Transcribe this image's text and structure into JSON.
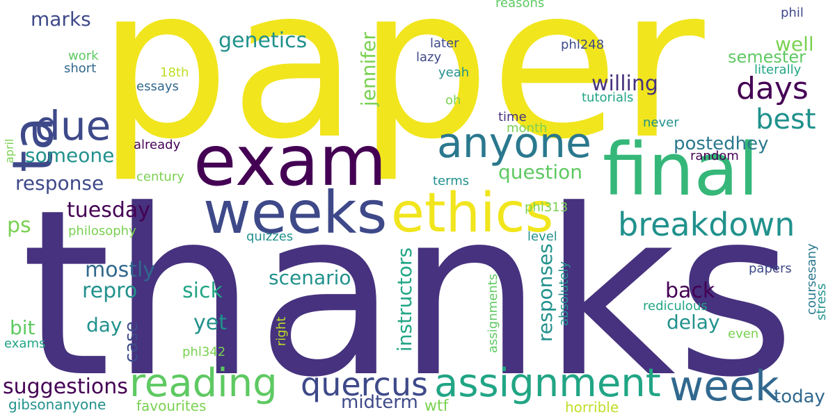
{
  "word_cloud": {
    "background": "#ffffff",
    "words": [
      {
        "text": "thanks",
        "color": "#46327e",
        "vertical": false
      },
      {
        "text": "paper",
        "color": "#f1e51d",
        "vertical": false
      },
      {
        "text": "exam",
        "color": "#440154",
        "vertical": false
      },
      {
        "text": "final",
        "color": "#35b779",
        "vertical": false
      },
      {
        "text": "weeks",
        "color": "#3e4989",
        "vertical": false
      },
      {
        "text": "ethics",
        "color": "#f1e51d",
        "vertical": false
      },
      {
        "text": "ta",
        "color": "#3e4989",
        "vertical": true
      },
      {
        "text": "due",
        "color": "#3e4989",
        "vertical": false
      },
      {
        "text": "anyone",
        "color": "#2a788e",
        "vertical": false
      },
      {
        "text": "reading",
        "color": "#5ec962",
        "vertical": false
      },
      {
        "text": "assignment",
        "color": "#21a585",
        "vertical": false
      },
      {
        "text": "week",
        "color": "#31688e",
        "vertical": false
      },
      {
        "text": "quercus",
        "color": "#3e4989",
        "vertical": false
      },
      {
        "text": "breakdown",
        "color": "#21918c",
        "vertical": false
      },
      {
        "text": "days",
        "color": "#440154",
        "vertical": false
      },
      {
        "text": "best",
        "color": "#21918c",
        "vertical": false
      },
      {
        "text": "genetics",
        "color": "#21918c",
        "vertical": false
      },
      {
        "text": "marks",
        "color": "#3e4989",
        "vertical": false
      },
      {
        "text": "willing",
        "color": "#46327e",
        "vertical": false
      },
      {
        "text": "well",
        "color": "#7ad151",
        "vertical": false
      },
      {
        "text": "semester",
        "color": "#5ec962",
        "vertical": false
      },
      {
        "text": "someone",
        "color": "#21918c",
        "vertical": false
      },
      {
        "text": "response",
        "color": "#3e4989",
        "vertical": false
      },
      {
        "text": "tuesday",
        "color": "#440154",
        "vertical": false
      },
      {
        "text": "mostly",
        "color": "#31688e",
        "vertical": false
      },
      {
        "text": "repro",
        "color": "#21918c",
        "vertical": false
      },
      {
        "text": "sick",
        "color": "#21a585",
        "vertical": false
      },
      {
        "text": "scenario",
        "color": "#21918c",
        "vertical": false
      },
      {
        "text": "question",
        "color": "#5ec962",
        "vertical": false
      },
      {
        "text": "postedhey",
        "color": "#2a788e",
        "vertical": false
      },
      {
        "text": "jennifer",
        "color": "#7ad151",
        "vertical": true
      },
      {
        "text": "instructors",
        "color": "#21a585",
        "vertical": true
      },
      {
        "text": "responses",
        "color": "#21918c",
        "vertical": true
      },
      {
        "text": "back",
        "color": "#440154",
        "vertical": false
      },
      {
        "text": "delay",
        "color": "#21918c",
        "vertical": false
      },
      {
        "text": "yet",
        "color": "#21918c",
        "vertical": false
      },
      {
        "text": "day",
        "color": "#21918c",
        "vertical": false
      },
      {
        "text": "case",
        "color": "#3e4989",
        "vertical": true
      },
      {
        "text": "bit",
        "color": "#5ec962",
        "vertical": false
      },
      {
        "text": "ps",
        "color": "#7ad151",
        "vertical": false
      },
      {
        "text": "suggestions",
        "color": "#440154",
        "vertical": false
      },
      {
        "text": "midterm",
        "color": "#3e4989",
        "vertical": false
      },
      {
        "text": "today",
        "color": "#31688e",
        "vertical": false
      },
      {
        "text": "wtf",
        "color": "#7ad151",
        "vertical": false
      },
      {
        "text": "gibsonanyone",
        "color": "#21918c",
        "vertical": false
      },
      {
        "text": "favourites",
        "color": "#7ad151",
        "vertical": false
      },
      {
        "text": "horrible",
        "color": "#bddf26",
        "vertical": false
      },
      {
        "text": "exams",
        "color": "#21a585",
        "vertical": false
      },
      {
        "text": "phl342",
        "color": "#7ad151",
        "vertical": false
      },
      {
        "text": "right",
        "color": "#bddf26",
        "vertical": true
      },
      {
        "text": "assignments",
        "color": "#5ec962",
        "vertical": true
      },
      {
        "text": "absolutely",
        "color": "#21918c",
        "vertical": true
      },
      {
        "text": "rediculous",
        "color": "#21a585",
        "vertical": false
      },
      {
        "text": "even",
        "color": "#7ad151",
        "vertical": false
      },
      {
        "text": "papers",
        "color": "#3e4989",
        "vertical": false
      },
      {
        "text": "coursesany",
        "color": "#2a788e",
        "vertical": true
      },
      {
        "text": "stress",
        "color": "#21918c",
        "vertical": true
      },
      {
        "text": "level",
        "color": "#21918c",
        "vertical": false
      },
      {
        "text": "quizzes",
        "color": "#21918c",
        "vertical": false
      },
      {
        "text": "philosophy",
        "color": "#7ad151",
        "vertical": false
      },
      {
        "text": "phl313",
        "color": "#7ad151",
        "vertical": false
      },
      {
        "text": "terms",
        "color": "#21918c",
        "vertical": false
      },
      {
        "text": "random",
        "color": "#440154",
        "vertical": false
      },
      {
        "text": "century",
        "color": "#7ad151",
        "vertical": false
      },
      {
        "text": "april",
        "color": "#7ad151",
        "vertical": true
      },
      {
        "text": "already",
        "color": "#440154",
        "vertical": false
      },
      {
        "text": "time",
        "color": "#46327e",
        "vertical": false
      },
      {
        "text": "month",
        "color": "#7ad151",
        "vertical": false
      },
      {
        "text": "never",
        "color": "#21918c",
        "vertical": false
      },
      {
        "text": "tutorials",
        "color": "#21a585",
        "vertical": false
      },
      {
        "text": "oh",
        "color": "#7ad151",
        "vertical": false
      },
      {
        "text": "essays",
        "color": "#31688e",
        "vertical": false
      },
      {
        "text": "18th",
        "color": "#bddf26",
        "vertical": false
      },
      {
        "text": "short",
        "color": "#31688e",
        "vertical": false
      },
      {
        "text": "work",
        "color": "#5ec962",
        "vertical": false
      },
      {
        "text": "later",
        "color": "#3e4989",
        "vertical": false
      },
      {
        "text": "lazy",
        "color": "#3e4989",
        "vertical": false
      },
      {
        "text": "yeah",
        "color": "#21918c",
        "vertical": false
      },
      {
        "text": "phl248",
        "color": "#3e4989",
        "vertical": false
      },
      {
        "text": "literally",
        "color": "#21a585",
        "vertical": false
      },
      {
        "text": "reasons",
        "color": "#5ec962",
        "vertical": false
      },
      {
        "text": "phil",
        "color": "#3e4989",
        "vertical": false
      }
    ]
  }
}
